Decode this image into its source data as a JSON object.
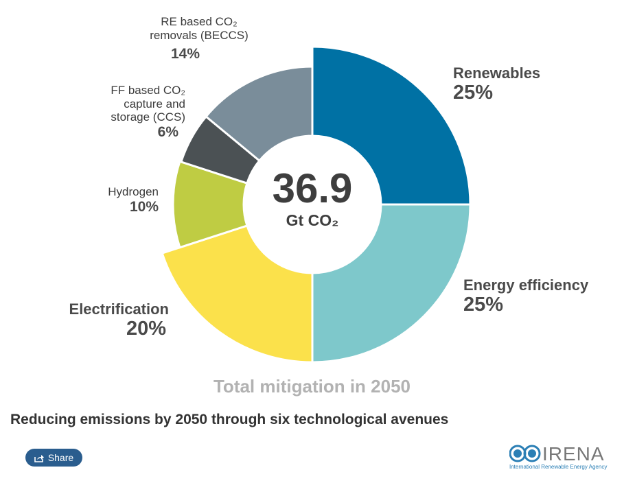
{
  "chart_data": {
    "type": "pie",
    "variant": "donut",
    "total": "36.9",
    "total_unit": "Gt CO₂",
    "subtitle": "Total mitigation in 2050",
    "title": "Reducing emissions by 2050 through six technological avenues",
    "slices": [
      {
        "label": "Renewables",
        "value": 25,
        "pct": "25%",
        "color": "#0071a4"
      },
      {
        "label": "Energy efficiency",
        "value": 25,
        "pct": "25%",
        "color": "#7ec8cb"
      },
      {
        "label": "Electrification",
        "value": 20,
        "pct": "20%",
        "color": "#fbe14b"
      },
      {
        "label": "Hydrogen",
        "value": 10,
        "pct": "10%",
        "color": "#bfcc43"
      },
      {
        "label": "FF based CO₂ capture and storage (CCS)",
        "value": 6,
        "pct": "6%",
        "color": "#4b5154"
      },
      {
        "label": "RE based CO₂ removals (BECCS)",
        "value": 14,
        "pct": "14%",
        "color": "#7a8d9a"
      }
    ]
  },
  "share_label": "Share",
  "logo": {
    "name": "IRENA",
    "tagline": "International Renewable Energy Agency"
  }
}
